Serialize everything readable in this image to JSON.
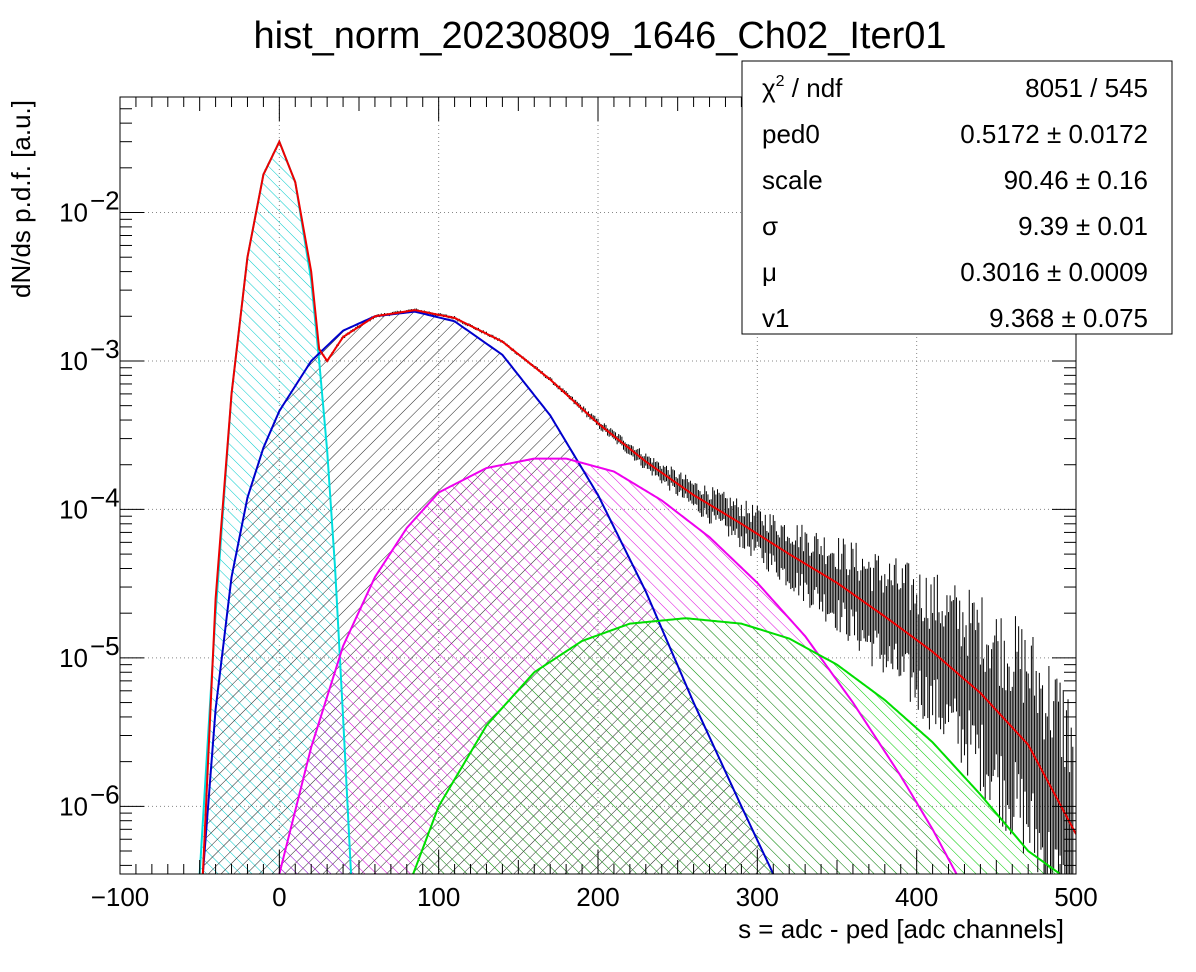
{
  "title": "hist_norm_20230809_1646_Ch02_Iter01",
  "chart_data": {
    "type": "line",
    "title": "hist_norm_20230809_1646_Ch02_Iter01",
    "xlabel": "s = adc - ped [adc channels]",
    "ylabel": "dN/ds p.d.f. [a.u.]",
    "xlim": [
      -100,
      500
    ],
    "ylim": [
      3.5e-07,
      0.06
    ],
    "y_scale": "log",
    "grid": true,
    "x_ticks": [
      {
        "value": -100,
        "label": "−100"
      },
      {
        "value": 0,
        "label": "0"
      },
      {
        "value": 100,
        "label": "100"
      },
      {
        "value": 200,
        "label": "200"
      },
      {
        "value": 300,
        "label": "300"
      },
      {
        "value": 400,
        "label": "400"
      },
      {
        "value": 500,
        "label": "500"
      }
    ],
    "y_ticks": [
      {
        "value": 1e-06,
        "base": "10",
        "exp": "−6"
      },
      {
        "value": 1e-05,
        "base": "10",
        "exp": "−5"
      },
      {
        "value": 0.0001,
        "base": "10",
        "exp": "−4"
      },
      {
        "value": 0.001,
        "base": "10",
        "exp": "−3"
      },
      {
        "value": 0.01,
        "base": "10",
        "exp": "−2"
      }
    ],
    "series": [
      {
        "color": "#00dddd",
        "hatch": "cyan",
        "points": [
          [
            -50,
            3.5e-07
          ],
          [
            -40,
            2e-05
          ],
          [
            -30,
            0.0006
          ],
          [
            -20,
            0.005
          ],
          [
            -10,
            0.018
          ],
          [
            0,
            0.03
          ],
          [
            10,
            0.016
          ],
          [
            20,
            0.0035
          ],
          [
            25,
            0.001
          ],
          [
            30,
            0.00025
          ],
          [
            35,
            4e-05
          ],
          [
            40,
            4e-06
          ],
          [
            45,
            3.5e-07
          ]
        ]
      },
      {
        "color": "#0000cc",
        "hatch": "black",
        "points": [
          [
            -48,
            3.5e-07
          ],
          [
            -40,
            4.5e-06
          ],
          [
            -30,
            3.5e-05
          ],
          [
            -20,
            0.00012
          ],
          [
            -10,
            0.00026
          ],
          [
            0,
            0.00046
          ],
          [
            20,
            0.001
          ],
          [
            40,
            0.0016
          ],
          [
            60,
            0.002
          ],
          [
            85,
            0.00215
          ],
          [
            110,
            0.00185
          ],
          [
            140,
            0.0011
          ],
          [
            170,
            0.00043
          ],
          [
            200,
            0.000125
          ],
          [
            230,
            2.8e-05
          ],
          [
            260,
            5e-06
          ],
          [
            290,
            1e-06
          ],
          [
            310,
            3.5e-07
          ]
        ]
      },
      {
        "color": "#ee00ee",
        "hatch": "magenta",
        "points": [
          [
            0,
            3.5e-07
          ],
          [
            20,
            2.5e-06
          ],
          [
            40,
            1.2e-05
          ],
          [
            60,
            3.5e-05
          ],
          [
            80,
            7.5e-05
          ],
          [
            100,
            0.00013
          ],
          [
            130,
            0.00019
          ],
          [
            160,
            0.00022
          ],
          [
            180,
            0.00022
          ],
          [
            210,
            0.00018
          ],
          [
            240,
            0.000115
          ],
          [
            270,
            6.5e-05
          ],
          [
            300,
            3.2e-05
          ],
          [
            330,
            1.4e-05
          ],
          [
            360,
            5e-06
          ],
          [
            390,
            1.6e-06
          ],
          [
            410,
            7e-07
          ],
          [
            425,
            3.5e-07
          ]
        ]
      },
      {
        "color": "#00dd00",
        "hatch": "green",
        "points": [
          [
            84,
            3.5e-07
          ],
          [
            100,
            1e-06
          ],
          [
            130,
            3.5e-06
          ],
          [
            160,
            8e-06
          ],
          [
            190,
            1.3e-05
          ],
          [
            220,
            1.7e-05
          ],
          [
            255,
            1.85e-05
          ],
          [
            290,
            1.7e-05
          ],
          [
            320,
            1.35e-05
          ],
          [
            350,
            9e-06
          ],
          [
            380,
            5.2e-06
          ],
          [
            410,
            2.7e-06
          ],
          [
            440,
            1.2e-06
          ],
          [
            470,
            5e-07
          ],
          [
            490,
            3.5e-07
          ]
        ]
      },
      {
        "color": "#ee0000",
        "hatch": null,
        "points": [
          [
            -48,
            3.5e-07
          ],
          [
            -40,
            2.5e-05
          ],
          [
            -30,
            0.0006
          ],
          [
            -20,
            0.005
          ],
          [
            -10,
            0.018
          ],
          [
            0,
            0.03
          ],
          [
            10,
            0.016
          ],
          [
            20,
            0.004
          ],
          [
            25,
            0.0012
          ],
          [
            30,
            0.001
          ],
          [
            40,
            0.00145
          ],
          [
            60,
            0.002
          ],
          [
            85,
            0.0022
          ],
          [
            110,
            0.00195
          ],
          [
            140,
            0.00135
          ],
          [
            170,
            0.00075
          ],
          [
            200,
            0.00038
          ],
          [
            230,
            0.00021
          ],
          [
            260,
            0.000125
          ],
          [
            290,
            8e-05
          ],
          [
            320,
            5e-05
          ],
          [
            350,
            3.2e-05
          ],
          [
            380,
            1.9e-05
          ],
          [
            410,
            1.1e-05
          ],
          [
            440,
            5.8e-06
          ],
          [
            470,
            2.6e-06
          ],
          [
            500,
            6.5e-07
          ]
        ]
      }
    ]
  },
  "stats": [
    {
      "label": "χ",
      "sup": "2",
      "label_rest": " / ndf",
      "value": "8051 / 545"
    },
    {
      "label": "ped0",
      "sup": "",
      "label_rest": "",
      "value": "0.5172 ± 0.0172"
    },
    {
      "label": "scale",
      "sup": "",
      "label_rest": "",
      "value": "90.46 ± 0.16"
    },
    {
      "label": "σ",
      "sup": "",
      "label_rest": "",
      "value": "9.39 ± 0.01"
    },
    {
      "label": "μ",
      "sup": "",
      "label_rest": "",
      "value": "0.3016 ± 0.0009"
    },
    {
      "label": "v1",
      "sup": "",
      "label_rest": "",
      "value": "9.368 ± 0.075"
    }
  ]
}
